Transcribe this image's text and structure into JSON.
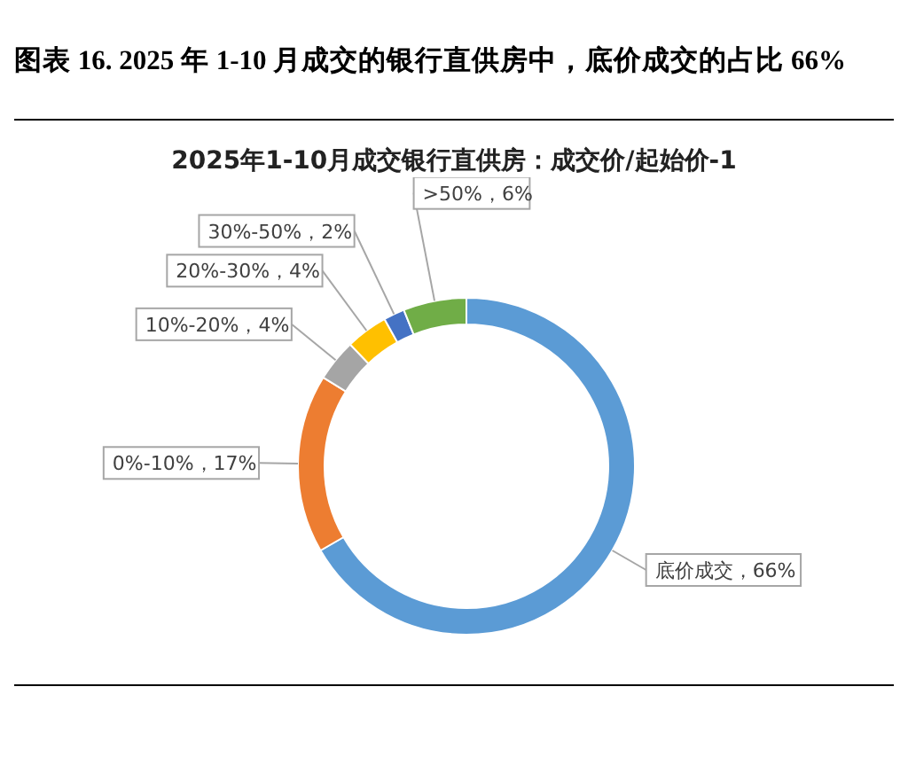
{
  "chart_data": {
    "type": "donut",
    "title": "图表 16. 2025 年 1-10 月成交的银行直供房中，底价成交的占比 66%",
    "subtitle": "2025年1-10月成交银行直供房：成交价/起始价-1",
    "categories": [
      "底价成交",
      "0%-10%",
      "10%-20%",
      "20%-30%",
      "30%-50%",
      ">50%"
    ],
    "values": [
      66,
      17,
      4,
      4,
      2,
      6
    ],
    "value_labels": [
      "66%",
      "17%",
      "4%",
      "4%",
      "2%",
      "6%"
    ],
    "colors": [
      "#5b9bd5",
      "#ed7d31",
      "#a5a5a5",
      "#ffc000",
      "#4472c4",
      "#70ad47"
    ],
    "legend": false
  }
}
